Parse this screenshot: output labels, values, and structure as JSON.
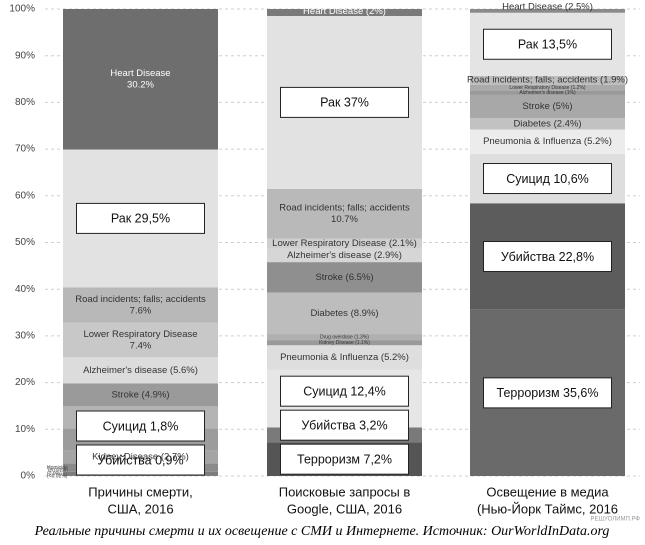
{
  "chart_data": {
    "type": "stacked-bar-percent",
    "ylim": [
      0,
      100
    ],
    "yticks": [
      {
        "value": 0,
        "label": "0%"
      },
      {
        "value": 10,
        "label": "10%"
      },
      {
        "value": 20,
        "label": "20%"
      },
      {
        "value": 30,
        "label": "30%"
      },
      {
        "value": 40,
        "label": "40%"
      },
      {
        "value": 50,
        "label": "50%"
      },
      {
        "value": 60,
        "label": "60%"
      },
      {
        "value": 70,
        "label": "70%"
      },
      {
        "value": 80,
        "label": "80%"
      },
      {
        "value": 90,
        "label": "90%"
      },
      {
        "value": 100,
        "label": "100%"
      }
    ],
    "grid": true,
    "caption": "Реальные причины смерти и их освещение с СМИ и Интернете. Источник: OurWorldInData.org",
    "watermark": "РЕШУОЛИМП.РФ",
    "columns": [
      {
        "category": [
          "Причины смерти,",
          "США, 2016"
        ],
        "segments": [
          {
            "label": null,
            "side_label": [
              "Terrorism",
              "(<0.01%)"
            ],
            "value": 0.01,
            "color": "#4a4a4a"
          },
          {
            "label": [
              "Убийства 0,9%"
            ],
            "boxed": true,
            "side_label": [
              "Homicide",
              "(0.9%)"
            ],
            "value": 0.9,
            "color": "#7d7d7d"
          },
          {
            "label": [
              "Суицид 1,8%"
            ],
            "boxed": true,
            "value": 1.8,
            "color": "#8a8a8a"
          },
          {
            "label": [
              "Kidney Disease (2.7%)"
            ],
            "value": 2.7,
            "color": "#a5a5a5"
          },
          {
            "label": null,
            "value": 4.8,
            "color": "#9c9c9c"
          },
          {
            "label": null,
            "value": 4.7,
            "color": "#b4b4b4"
          },
          {
            "label": [
              "Stroke (4.9%)"
            ],
            "value": 4.9,
            "color": "#9a9a9a"
          },
          {
            "label": [
              "Alzheimer's disease (5.6%)"
            ],
            "value": 5.6,
            "color": "#dcdcdc"
          },
          {
            "label": [
              "Lower Respiratory Disease",
              "7.4%"
            ],
            "value": 7.4,
            "color": "#c8c8c8"
          },
          {
            "label": [
              "Road incidents; falls; accidents",
              "7.6%"
            ],
            "value": 7.6,
            "color": "#b8b8b8"
          },
          {
            "label": [
              "Рак 29,5%"
            ],
            "boxed": true,
            "value": 29.5,
            "color": "#e2e2e2"
          },
          {
            "label": [
              "Heart Disease",
              "30.2%"
            ],
            "value": 30.2,
            "color": "#6e6e6e"
          }
        ]
      },
      {
        "category": [
          "Поисковые запросы в",
          "Google, США, 2016"
        ],
        "segments": [
          {
            "label": [
              "Терроризм 7,2%"
            ],
            "boxed": true,
            "value": 7.2,
            "color": "#555555"
          },
          {
            "label": [
              "Убийства 3,2%"
            ],
            "boxed": true,
            "value": 3.2,
            "color": "#7a7a7a"
          },
          {
            "label": [
              "Суицид 12,4%"
            ],
            "boxed": true,
            "value": 12.4,
            "color": "#e6e6e6"
          },
          {
            "label": [
              "Pneumonia & Influenza (5.2%)"
            ],
            "value": 5.2,
            "color": "#dedede"
          },
          {
            "label": [
              "Kidney Disease (1.1%)"
            ],
            "value": 1.1,
            "color": "#9a9a9a"
          },
          {
            "label": [
              "Drug overdose (1.3%)"
            ],
            "value": 1.3,
            "color": "#b0b0b0"
          },
          {
            "label": [
              "Diabetes (8.9%)"
            ],
            "value": 8.9,
            "color": "#bdbdbd"
          },
          {
            "label": [
              "Stroke (6.5%)"
            ],
            "value": 6.5,
            "color": "#8f8f8f"
          },
          {
            "label": [
              "Alzheimer's disease (2.9%)"
            ],
            "value": 2.9,
            "color": "#d6d6d6"
          },
          {
            "label": [
              "Lower Respiratory Disease (2.1%)"
            ],
            "value": 2.1,
            "color": "#cfcfcf"
          },
          {
            "label": [
              "Road incidents; falls; accidents",
              "10.7%"
            ],
            "value": 10.7,
            "color": "#b9b9b9"
          },
          {
            "label": [
              "Рак 37%"
            ],
            "boxed": true,
            "value": 37,
            "color": "#e2e2e2"
          },
          {
            "label": [
              "Heart Disease (2%)"
            ],
            "value": 2,
            "color": "#7a7a7a"
          }
        ]
      },
      {
        "category": [
          "Освещение в медиа",
          "(Нью-Йорк Таймс, 2016"
        ],
        "segments": [
          {
            "label": [
              "Терроризм 35,6%"
            ],
            "boxed": true,
            "value": 35.6,
            "color": "#6a6a6a"
          },
          {
            "label": [
              "Убийства 22,8%"
            ],
            "boxed": true,
            "value": 22.8,
            "color": "#5c5c5c"
          },
          {
            "label": [
              "Суицид 10,6%"
            ],
            "boxed": true,
            "value": 10.6,
            "color": "#dedede"
          },
          {
            "label": [
              "Pneumonia & Influenza (5.2%)"
            ],
            "value": 5.2,
            "color": "#ececec"
          },
          {
            "label": [
              "Diabetes (2.4%)"
            ],
            "value": 2.4,
            "color": "#c2c2c2"
          },
          {
            "label": [
              "Stroke (5%)"
            ],
            "value": 5,
            "color": "#a8a8a8"
          },
          {
            "label": [
              "Alzheimer's disease (1%)"
            ],
            "value": 1,
            "color": "#999999"
          },
          {
            "label": [
              "Lower Respiratory Disease (1.2%)"
            ],
            "value": 1.2,
            "color": "#aaaaaa"
          },
          {
            "label": [
              "Road incidents; falls; accidents (1.9%)"
            ],
            "value": 1.9,
            "color": "#bdbdbd"
          },
          {
            "label": [
              "Рак 13,5%"
            ],
            "boxed": true,
            "value": 13.5,
            "color": "#e4e4e4"
          },
          {
            "label": [
              "Heart Disease (2.5%)"
            ],
            "value": 2.5,
            "color": "#8a8a8a"
          }
        ]
      }
    ]
  }
}
